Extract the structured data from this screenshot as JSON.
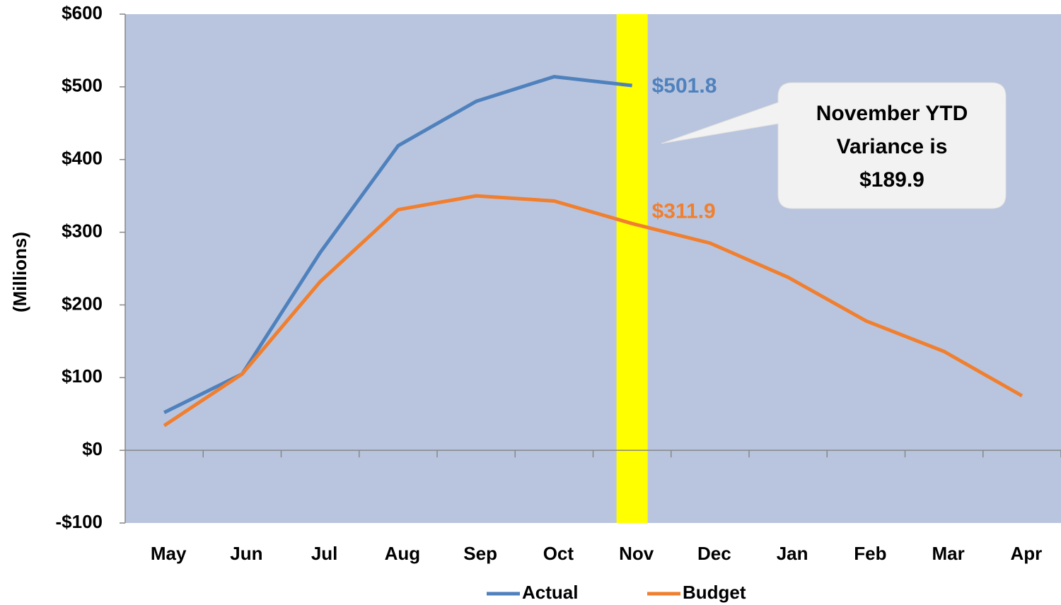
{
  "chart_data": {
    "type": "line",
    "y_label": "(Millions)",
    "categories": [
      "May",
      "Jun",
      "Jul",
      "Aug",
      "Sep",
      "Oct",
      "Nov",
      "Dec",
      "Jan",
      "Feb",
      "Mar",
      "Apr"
    ],
    "series": [
      {
        "name": "Actual",
        "color": "#4f81bd",
        "values": [
          52,
          105,
          272,
          419,
          480,
          514,
          501.8,
          null,
          null,
          null,
          null,
          null
        ],
        "value_labels": [
          null,
          null,
          null,
          null,
          null,
          null,
          "$501.8",
          null,
          null,
          null,
          null,
          null
        ]
      },
      {
        "name": "Budget",
        "color": "#f07f2f",
        "values": [
          34,
          105,
          232,
          331,
          350,
          343,
          311.9,
          285,
          238,
          178,
          136,
          75
        ],
        "value_labels": [
          null,
          null,
          null,
          null,
          null,
          null,
          "$311.9",
          null,
          null,
          null,
          null,
          null
        ]
      }
    ],
    "ylim": [
      -100,
      600
    ],
    "yticks": [
      {
        "value": -100,
        "label": "-$100"
      },
      {
        "value": 0,
        "label": "$0"
      },
      {
        "value": 100,
        "label": "$100"
      },
      {
        "value": 200,
        "label": "$200"
      },
      {
        "value": 300,
        "label": "$300"
      },
      {
        "value": 400,
        "label": "$400"
      },
      {
        "value": 500,
        "label": "$500"
      },
      {
        "value": 600,
        "label": "$600"
      }
    ],
    "highlight": {
      "category": "Nov",
      "color": "#ffff00"
    },
    "annotation": [
      "November YTD",
      "Variance is",
      "$189.9"
    ],
    "background": "#b9c5de",
    "legend": "bottom"
  }
}
